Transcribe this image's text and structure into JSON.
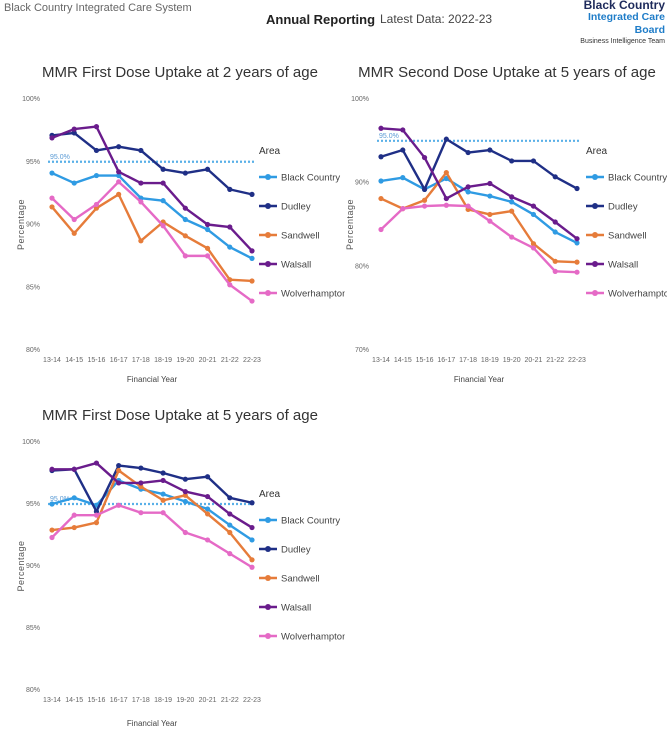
{
  "header": {
    "organisation": "Black Country Integrated Care System",
    "report_type": "Annual Reporting",
    "latest_data": "Latest Data: 2022-23",
    "logo_line1": "Black Country",
    "logo_line2": "Integrated Care Board",
    "logo_line3": "Business Intelligence Team"
  },
  "colors": {
    "Black Country": "#2f9be3",
    "Dudley": "#1f2f86",
    "Sandwell": "#e67c3a",
    "Walsall": "#6a1c8c",
    "Wolverhampton": "#e56ac6",
    "target": "#5ab0e8"
  },
  "chart_data": [
    {
      "type": "line",
      "title": "MMR First Dose Uptake at 2 years of age",
      "xlabel": "Financial Year",
      "ylabel": "Percentage",
      "ylim": [
        80,
        100
      ],
      "yticks": [
        "80%",
        "85%",
        "90%",
        "95%",
        "100%"
      ],
      "target": 95.0,
      "target_label": "95.0%",
      "legend_title": "Area",
      "legend_position": "right",
      "categories": [
        "13-14",
        "14-15",
        "15-16",
        "16-17",
        "17-18",
        "18-19",
        "19-20",
        "20-21",
        "21-22",
        "22-23"
      ],
      "series": [
        {
          "name": "Black Country",
          "values": [
            94.1,
            93.3,
            93.9,
            93.9,
            92.1,
            91.9,
            90.4,
            89.6,
            88.2,
            87.3
          ]
        },
        {
          "name": "Dudley",
          "values": [
            97.1,
            97.3,
            95.9,
            96.2,
            95.9,
            94.4,
            94.1,
            94.4,
            92.8,
            92.4
          ]
        },
        {
          "name": "Sandwell",
          "values": [
            91.4,
            89.3,
            91.3,
            92.4,
            88.7,
            90.2,
            89.1,
            88.1,
            85.6,
            85.5
          ]
        },
        {
          "name": "Walsall",
          "values": [
            96.9,
            97.6,
            97.8,
            94.2,
            93.3,
            93.3,
            91.3,
            90.0,
            89.8,
            87.9
          ]
        },
        {
          "name": "Wolverhampton",
          "values": [
            92.1,
            90.4,
            91.6,
            93.4,
            91.8,
            89.9,
            87.5,
            87.5,
            85.2,
            83.9
          ]
        }
      ]
    },
    {
      "type": "line",
      "title": "MMR Second Dose Uptake at 5 years of age",
      "xlabel": "Financial Year",
      "ylabel": "Percentage",
      "ylim": [
        70,
        100
      ],
      "yticks": [
        "70%",
        "80%",
        "90%",
        "100%"
      ],
      "target": 95.0,
      "target_label": "95.0%",
      "legend_title": "Area",
      "legend_position": "right",
      "categories": [
        "13-14",
        "14-15",
        "15-16",
        "16-17",
        "17-18",
        "18-19",
        "19-20",
        "20-21",
        "21-22",
        "22-23"
      ],
      "series": [
        {
          "name": "Black Country",
          "values": [
            90.2,
            90.6,
            89.2,
            90.5,
            88.9,
            88.4,
            87.7,
            86.2,
            84.1,
            82.8
          ]
        },
        {
          "name": "Dudley",
          "values": [
            93.1,
            93.9,
            89.2,
            95.2,
            93.6,
            93.9,
            92.6,
            92.6,
            90.7,
            89.3
          ]
        },
        {
          "name": "Sandwell",
          "values": [
            88.1,
            86.9,
            87.9,
            91.2,
            86.8,
            86.2,
            86.6,
            82.7,
            80.6,
            80.5
          ]
        },
        {
          "name": "Walsall",
          "values": [
            96.5,
            96.3,
            93.0,
            88.1,
            89.5,
            89.9,
            88.3,
            87.2,
            85.3,
            83.3
          ]
        },
        {
          "name": "Wolverhampton",
          "values": [
            84.4,
            86.9,
            87.2,
            87.3,
            87.2,
            85.4,
            83.5,
            82.2,
            79.4,
            79.3
          ]
        }
      ]
    },
    {
      "type": "line",
      "title": "MMR First Dose Uptake at 5 years of age",
      "xlabel": "Financial Year",
      "ylabel": "Percentage",
      "ylim": [
        80,
        100
      ],
      "yticks": [
        "80%",
        "85%",
        "90%",
        "95%",
        "100%"
      ],
      "target": 95.0,
      "target_label": "95.0%",
      "legend_title": "Area",
      "legend_position": "right",
      "categories": [
        "13-14",
        "14-15",
        "15-16",
        "16-17",
        "17-18",
        "18-19",
        "19-20",
        "20-21",
        "21-22",
        "22-23"
      ],
      "series": [
        {
          "name": "Black Country",
          "values": [
            95.0,
            95.5,
            94.9,
            96.9,
            96.2,
            95.8,
            95.2,
            94.6,
            93.3,
            92.1
          ]
        },
        {
          "name": "Dudley",
          "values": [
            97.7,
            97.8,
            94.4,
            98.1,
            97.9,
            97.5,
            97.0,
            97.2,
            95.5,
            95.1
          ]
        },
        {
          "name": "Sandwell",
          "values": [
            92.9,
            93.1,
            93.5,
            97.7,
            96.4,
            95.3,
            95.7,
            94.2,
            92.7,
            90.5
          ]
        },
        {
          "name": "Walsall",
          "values": [
            97.8,
            97.8,
            98.3,
            96.7,
            96.7,
            96.9,
            96.0,
            95.6,
            94.2,
            93.1
          ]
        },
        {
          "name": "Wolverhampton",
          "values": [
            92.3,
            94.1,
            94.1,
            94.9,
            94.3,
            94.3,
            92.7,
            92.1,
            91.0,
            89.9
          ]
        }
      ]
    }
  ]
}
